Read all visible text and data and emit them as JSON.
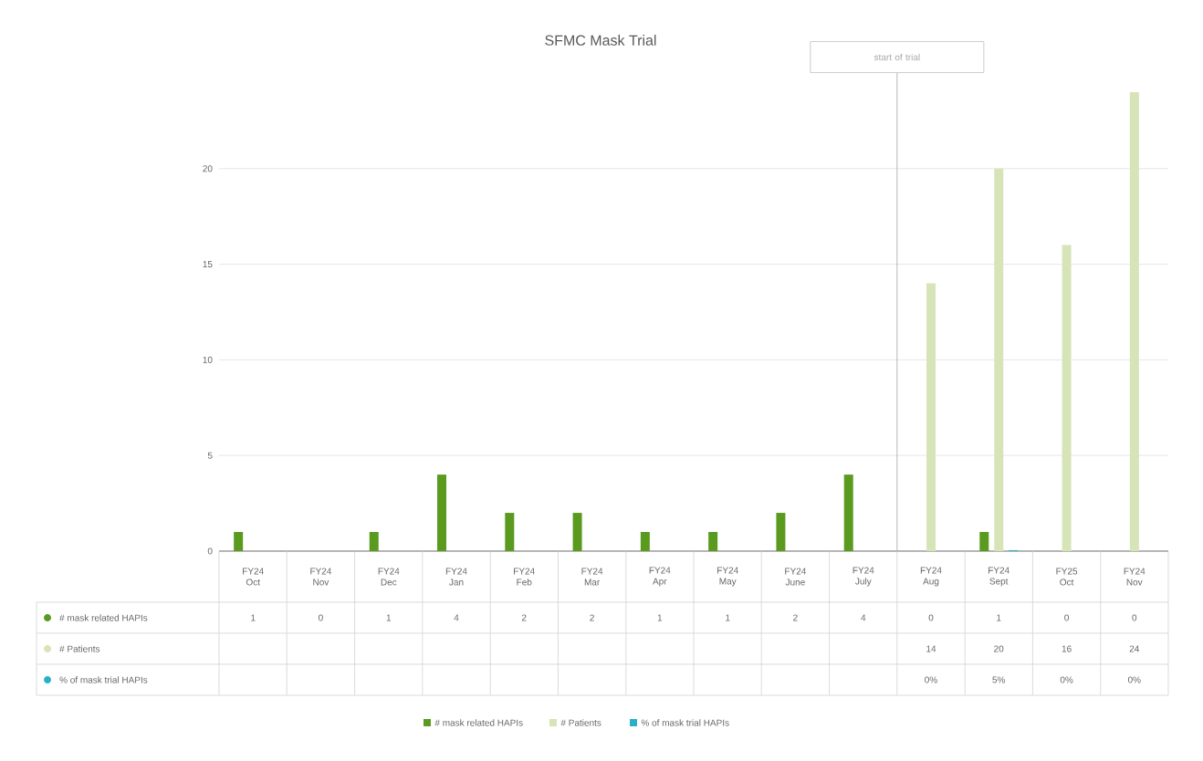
{
  "chart_data": {
    "type": "bar",
    "title": "SFMC Mask Trial",
    "categories": [
      "FY24 Oct",
      "FY24 Nov",
      "FY24 Dec",
      "FY24 Jan",
      "FY24 Feb",
      "FY24 Mar",
      "FY24 Apr",
      "FY24 May",
      "FY24 June",
      "FY24 July",
      "FY24 Aug",
      "FY24 Sept",
      "FY25 Oct",
      "FY24 Nov"
    ],
    "series": [
      {
        "name": "# mask related HAPIs",
        "color": "#5a9a1e",
        "values": [
          1,
          0,
          1,
          4,
          2,
          2,
          1,
          1,
          2,
          4,
          0,
          1,
          0,
          0
        ],
        "value_labels": [
          "1",
          "0",
          "1",
          "4",
          "2",
          "2",
          "1",
          "1",
          "2",
          "4",
          "0",
          "1",
          "0",
          "0"
        ]
      },
      {
        "name": "# Patients",
        "color": "#d6e4b8",
        "values": [
          null,
          null,
          null,
          null,
          null,
          null,
          null,
          null,
          null,
          null,
          14,
          20,
          16,
          24
        ],
        "value_labels": [
          null,
          null,
          null,
          null,
          null,
          null,
          null,
          null,
          null,
          null,
          "14",
          "20",
          "16",
          "24"
        ]
      },
      {
        "name": "% of mask trial HAPIs",
        "color": "#2ab0c8",
        "values": [
          null,
          null,
          null,
          null,
          null,
          null,
          null,
          null,
          null,
          null,
          0,
          0.05,
          0,
          0
        ],
        "value_labels": [
          null,
          null,
          null,
          null,
          null,
          null,
          null,
          null,
          null,
          null,
          "0%",
          "5%",
          "0%",
          "0%"
        ]
      }
    ],
    "ylim": [
      0,
      25
    ],
    "yticks": [
      0,
      5,
      10,
      15,
      20
    ],
    "grid": "y",
    "legend": "bottom",
    "ref_lines": [
      {
        "axis": "x",
        "value": "FY24 Aug",
        "label": "start of trial"
      }
    ]
  }
}
